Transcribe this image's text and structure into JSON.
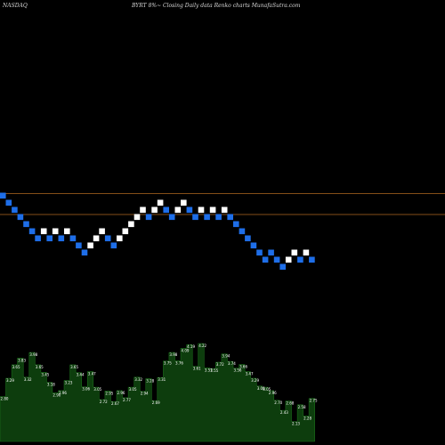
{
  "header": {
    "exchange": "NASDAQ",
    "caption": "BYRT 8%~ Closing Daily data Renko charts MunafaSutra.com"
  },
  "chart_data": {
    "type": "renko",
    "title": "BYRT 8%~ Closing Daily data Renko charts MunafaSutra.com",
    "exchange": "NASDAQ",
    "colors": {
      "up": "#ffffff",
      "down": "#1e6ee8",
      "level_line": "#b06820",
      "volume": "#0d3d0d",
      "volume_edge": "#1f7a1f",
      "background": "#000000"
    },
    "levels": [
      0,
      1
    ],
    "bricks": [
      {
        "level": 0,
        "dir": "down"
      },
      {
        "level": -1,
        "dir": "down"
      },
      {
        "level": -2,
        "dir": "down"
      },
      {
        "level": -3,
        "dir": "down"
      },
      {
        "level": -4,
        "dir": "down"
      },
      {
        "level": -5,
        "dir": "down"
      },
      {
        "level": -6,
        "dir": "down"
      },
      {
        "level": -5,
        "dir": "up"
      },
      {
        "level": -6,
        "dir": "down"
      },
      {
        "level": -5,
        "dir": "up"
      },
      {
        "level": -6,
        "dir": "down"
      },
      {
        "level": -5,
        "dir": "up"
      },
      {
        "level": -6,
        "dir": "down"
      },
      {
        "level": -7,
        "dir": "down"
      },
      {
        "level": -8,
        "dir": "down"
      },
      {
        "level": -7,
        "dir": "up"
      },
      {
        "level": -6,
        "dir": "up"
      },
      {
        "level": -5,
        "dir": "up"
      },
      {
        "level": -6,
        "dir": "down"
      },
      {
        "level": -7,
        "dir": "down"
      },
      {
        "level": -6,
        "dir": "up"
      },
      {
        "level": -5,
        "dir": "up"
      },
      {
        "level": -4,
        "dir": "up"
      },
      {
        "level": -3,
        "dir": "up"
      },
      {
        "level": -2,
        "dir": "up"
      },
      {
        "level": -3,
        "dir": "down"
      },
      {
        "level": -2,
        "dir": "up"
      },
      {
        "level": -1,
        "dir": "up"
      },
      {
        "level": -2,
        "dir": "down"
      },
      {
        "level": -3,
        "dir": "down"
      },
      {
        "level": -2,
        "dir": "up"
      },
      {
        "level": -1,
        "dir": "up"
      },
      {
        "level": -2,
        "dir": "down"
      },
      {
        "level": -3,
        "dir": "down"
      },
      {
        "level": -2,
        "dir": "up"
      },
      {
        "level": -3,
        "dir": "down"
      },
      {
        "level": -2,
        "dir": "up"
      },
      {
        "level": -3,
        "dir": "down"
      },
      {
        "level": -2,
        "dir": "up"
      },
      {
        "level": -3,
        "dir": "down"
      },
      {
        "level": -4,
        "dir": "down"
      },
      {
        "level": -5,
        "dir": "down"
      },
      {
        "level": -6,
        "dir": "down"
      },
      {
        "level": -7,
        "dir": "down"
      },
      {
        "level": -8,
        "dir": "down"
      },
      {
        "level": -9,
        "dir": "down"
      },
      {
        "level": -8,
        "dir": "down"
      },
      {
        "level": -9,
        "dir": "down"
      },
      {
        "level": -10,
        "dir": "down"
      },
      {
        "level": -9,
        "dir": "up"
      },
      {
        "level": -8,
        "dir": "up"
      },
      {
        "level": -9,
        "dir": "down"
      },
      {
        "level": -8,
        "dir": "up"
      },
      {
        "level": -9,
        "dir": "down"
      }
    ],
    "volume_labels": [
      "2.80",
      "3.29",
      "3.65",
      "3.83",
      "3.32",
      "3.98",
      "3.65",
      "3.45",
      "3.18",
      "2.90",
      "2.96",
      "3.23",
      "3.65",
      "3.44",
      "3.06",
      "3.47",
      "3.05",
      "2.72",
      "2.95",
      "2.67",
      "2.96",
      "2.77",
      "3.05",
      "3.32",
      "2.94",
      "3.28",
      "2.69",
      "3.31",
      "3.75",
      "3.98",
      "3.76",
      "4.09",
      "4.19",
      "3.61",
      "4.22",
      "3.57",
      "3.55",
      "3.72",
      "3.94",
      "3.74",
      "3.56",
      "3.66",
      "3.47",
      "3.29",
      "3.08",
      "3.05",
      "2.96",
      "2.70",
      "2.43",
      "2.68",
      "2.13",
      "2.58",
      "2.28",
      "2.75"
    ]
  }
}
